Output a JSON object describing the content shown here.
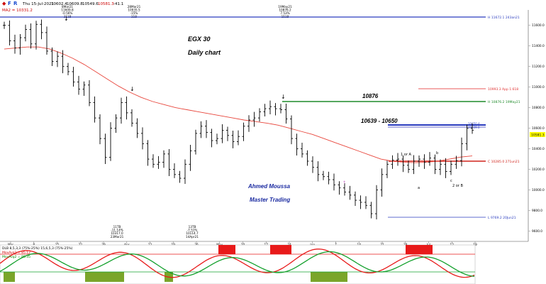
{
  "toolbar": {
    "icons": [
      "d-icon",
      "f-icon",
      "r-icon"
    ],
    "date": "Thu 15-Jul-2021",
    "open": "10602.4",
    "high": "10609.8",
    "low": "10549.6",
    "close": "10581.3",
    "change": "-41.1"
  },
  "ma_label": "MA2 = 10331.2",
  "main_title": "EGX 30",
  "main_subtitle": "Daily chart",
  "author": "Ahmed Moussa",
  "company": "Master Trading",
  "annotations": {
    "level_10876": "10876",
    "range_label": "10639 - 10650",
    "one_or_a": "1 or A",
    "b": "b",
    "a": "a",
    "c": "c",
    "two_or_b": "2 or B"
  },
  "top_callouts": [
    {
      "lines": [
        "8Mar21",
        "11609.8",
        "-0.56%",
        "311B"
      ]
    },
    {
      "lines": [
        "28Mar21",
        "10935.5",
        "-15%",
        "11B"
      ]
    },
    {
      "lines": [
        "19May21",
        "10876.2",
        "7.53%",
        "151B"
      ]
    }
  ],
  "bottom_callouts": [
    {
      "lines": [
        "11TB",
        "-11.14%",
        "10317.0",
        "23Mar21"
      ]
    },
    {
      "lines": [
        "13TB",
        "-7.51%",
        "10114.7",
        "14Apr21"
      ]
    }
  ],
  "hline_labels": {
    "h_11672": "H 11672.1 243an21",
    "app_1618": "10993.3 App 1.618",
    "h_10876": "H 10876.2 19May21",
    "tag_10650": "10650.4",
    "tag_10639": "10639.0",
    "c_10285": "C 10285.0 271un21",
    "l_9769": "L 9769.2 20Jun21"
  },
  "price_ticks": [
    "11600.0",
    "11400.0",
    "11200.0",
    "11000.0",
    "10800.0",
    "10600.0",
    "10400.0",
    "10200.0",
    "10000.0",
    "9800.0",
    "9600.0"
  ],
  "price_marker": "10581.3",
  "date_ticks": [
    "Mar",
    "8",
    "15",
    "22",
    "29",
    "Apr",
    "12",
    "19",
    "26",
    "May",
    "10",
    "17",
    "24",
    "Jun",
    "7",
    "14",
    "21",
    "28",
    "Jul",
    "12",
    "19"
  ],
  "oscillator": {
    "line1": "DLB 8,5,3,3 (75%-25%) 15,6,5,3 (75%-25%)",
    "line2": "MovAvg1 = 85.12",
    "line3": "MovAvg2 = 80.35"
  },
  "colors": {
    "ma": "#e8463c",
    "blue_line": "#2a3cbf",
    "green_line": "#1f8a2a",
    "red_line": "#d0241c",
    "osc_red": "#e81a1a",
    "osc_green": "#13a02c",
    "price_marker_bg": "#ffff00"
  },
  "chart_data": {
    "type": "ohlc",
    "title": "EGX 30",
    "subtitle": "Daily chart",
    "ylim": [
      9500,
      11750
    ],
    "x_date_labels": [
      "Mar",
      "8",
      "15",
      "22",
      "29",
      "Apr",
      "12",
      "19",
      "26",
      "May",
      "10",
      "17",
      "24",
      "Jun",
      "7",
      "14",
      "21",
      "28",
      "Jul",
      "12",
      "19"
    ],
    "close_path": [
      11600,
      11450,
      11380,
      11480,
      11560,
      11420,
      11610,
      11530,
      11350,
      11250,
      11300,
      11200,
      11150,
      11050,
      10980,
      11020,
      10850,
      10700,
      10500,
      10317,
      10600,
      10700,
      10850,
      10750,
      10650,
      10550,
      10450,
      10300,
      10250,
      10270,
      10350,
      10200,
      10150,
      10114,
      10250,
      10380,
      10550,
      10620,
      10560,
      10480,
      10500,
      10580,
      10530,
      10470,
      10520,
      10620,
      10680,
      10700,
      10760,
      10790,
      10810,
      10790,
      10780,
      10690,
      10500,
      10400,
      10350,
      10280,
      10220,
      10150,
      10130,
      10100,
      10050,
      10020,
      9980,
      9950,
      9900,
      9880,
      9850,
      9769,
      10000,
      10150,
      10250,
      10290,
      10300,
      10240,
      10200,
      10280,
      10300,
      10270,
      10310,
      10200,
      10250,
      10180,
      10250,
      10285,
      10450,
      10600,
      10581
    ],
    "moving_average": [
      11370,
      11380,
      11390,
      11390,
      11370,
      11330,
      11280,
      11220,
      11150,
      11080,
      11010,
      10950,
      10900,
      10860,
      10830,
      10800,
      10780,
      10760,
      10740,
      10720,
      10700,
      10680,
      10665,
      10650,
      10630,
      10600,
      10570,
      10540,
      10500,
      10460,
      10420,
      10380,
      10340,
      10300,
      10280,
      10270,
      10265,
      10270,
      10280,
      10300,
      10320,
      10331
    ],
    "levels": [
      {
        "name": "H 11672.1",
        "value": 11672.1
      },
      {
        "name": "10993.3 App 1.618",
        "value": 10993.3
      },
      {
        "name": "H 10876.2",
        "value": 10876.2
      },
      {
        "name": "10650.4",
        "value": 10650.4
      },
      {
        "name": "10639.0",
        "value": 10639.0
      },
      {
        "name": "C 10285.0",
        "value": 10285.0
      },
      {
        "name": "L 9769.2",
        "value": 9769.2
      }
    ],
    "last": {
      "open": 10602.4,
      "high": 10609.8,
      "low": 10549.6,
      "close": 10581.3
    }
  }
}
